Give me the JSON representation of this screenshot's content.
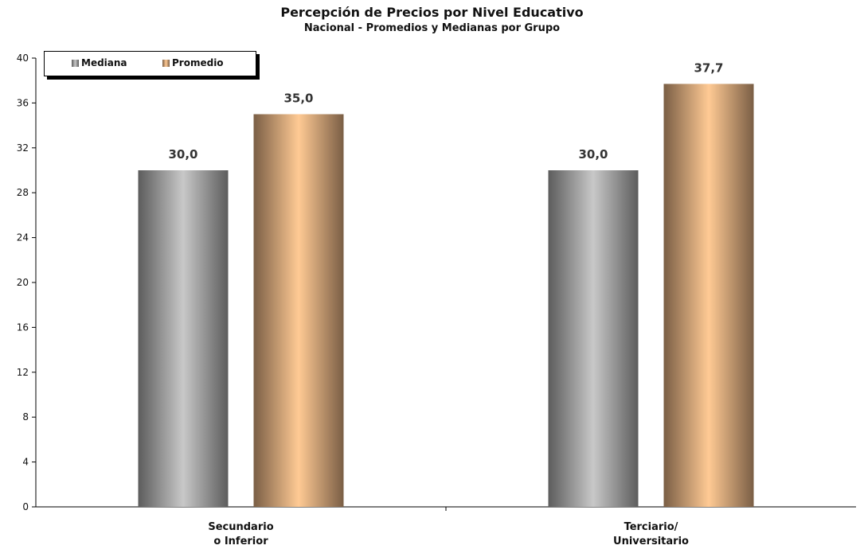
{
  "chart_data": {
    "type": "bar",
    "title": "Percepción de Precios por Nivel Educativo",
    "subtitle": "Nacional - Promedios y Medianas por Grupo",
    "categories": [
      [
        "Secundario",
        "o Inferior"
      ],
      [
        "Terciario/",
        "Universitario"
      ]
    ],
    "series": [
      {
        "name": "Mediana",
        "values": [
          30.0,
          30.0
        ],
        "labels": [
          "30,0",
          "30,0"
        ]
      },
      {
        "name": "Promedio",
        "values": [
          35.0,
          37.7
        ],
        "labels": [
          "35,0",
          "37,7"
        ]
      }
    ],
    "ylim": [
      0,
      40
    ],
    "yticks": [
      0,
      4,
      8,
      12,
      16,
      20,
      24,
      28,
      32,
      36,
      40
    ],
    "xlabel": "",
    "ylabel": "",
    "grid": false,
    "legend_position": "top-left",
    "colors": {
      "mediana_dark": "#5c5c5c",
      "mediana_light": "#c8c8c8",
      "promedio_dark": "#7a5e45",
      "promedio_light": "#ffca94"
    }
  }
}
